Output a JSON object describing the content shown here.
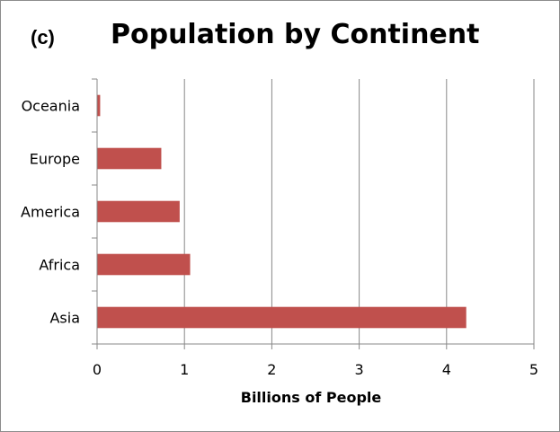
{
  "chart_data": {
    "type": "bar",
    "orientation": "horizontal",
    "panel_label": "(c)",
    "title": "Population by Continent",
    "categories": [
      "Oceania",
      "Europe",
      "America",
      "Africa",
      "Asia"
    ],
    "values": [
      0.03,
      0.73,
      0.94,
      1.06,
      4.22
    ],
    "xlabel": "Billions of People",
    "ylabel": "",
    "xlim": [
      0,
      5
    ],
    "xticks": [
      "0",
      "1",
      "2",
      "3",
      "4",
      "5"
    ],
    "grid": "vertical",
    "bar_color": "#c0504d",
    "legend": "none"
  }
}
